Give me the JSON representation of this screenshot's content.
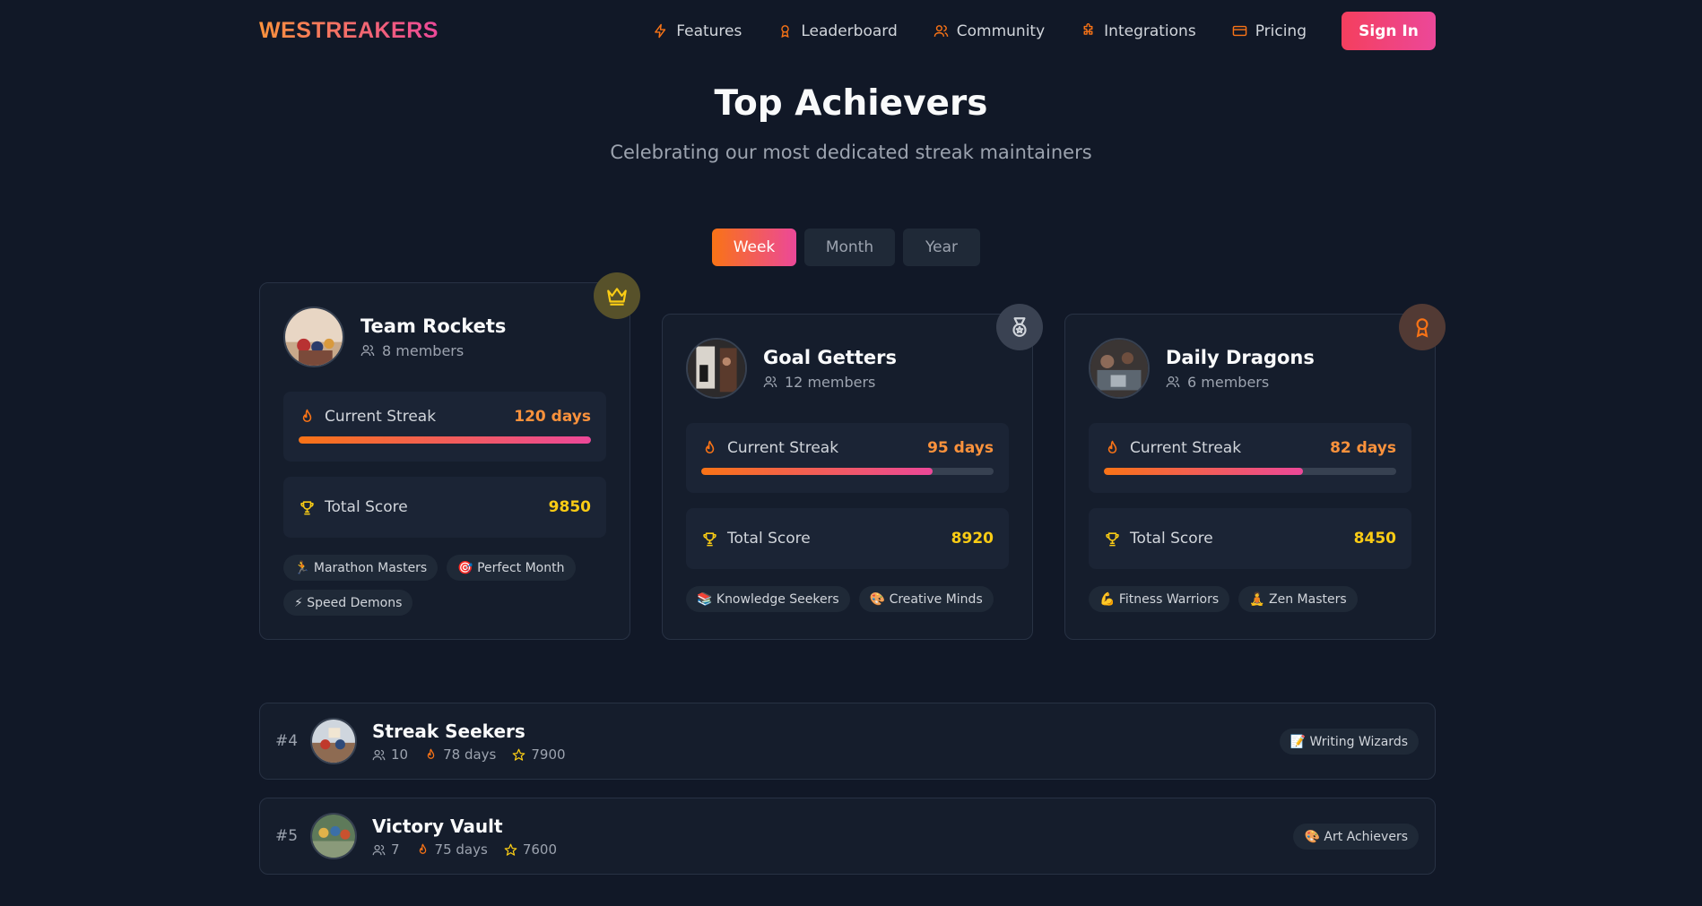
{
  "nav": {
    "logo": "WESTREAKERS",
    "links": [
      {
        "label": "Features",
        "icon": "lightning-icon"
      },
      {
        "label": "Leaderboard",
        "icon": "award-icon"
      },
      {
        "label": "Community",
        "icon": "users-icon"
      },
      {
        "label": "Integrations",
        "icon": "puzzle-icon"
      },
      {
        "label": "Pricing",
        "icon": "credit-card-icon"
      }
    ],
    "signin": "Sign In"
  },
  "header": {
    "title": "Top Achievers",
    "subtitle": "Celebrating our most dedicated streak maintainers"
  },
  "tabs": [
    {
      "label": "Week",
      "active": true
    },
    {
      "label": "Month",
      "active": false
    },
    {
      "label": "Year",
      "active": false
    }
  ],
  "top": [
    {
      "name": "Team Rockets",
      "members": "8 members",
      "badge": "crown-icon",
      "streak_label": "Current Streak",
      "streak": "120 days",
      "streak_progress": 1.0,
      "score_label": "Total Score",
      "score": "9850",
      "chips": [
        "🏃 Marathon Masters",
        "🎯 Perfect Month",
        "⚡ Speed Demons"
      ]
    },
    {
      "name": "Goal Getters",
      "members": "12 members",
      "badge": "medal-icon",
      "streak_label": "Current Streak",
      "streak": "95 days",
      "streak_progress": 0.79,
      "score_label": "Total Score",
      "score": "8920",
      "chips": [
        "📚 Knowledge Seekers",
        "🎨 Creative Minds"
      ]
    },
    {
      "name": "Daily Dragons",
      "members": "6 members",
      "badge": "award-icon",
      "streak_label": "Current Streak",
      "streak": "82 days",
      "streak_progress": 0.68,
      "score_label": "Total Score",
      "score": "8450",
      "chips": [
        "💪 Fitness Warriors",
        "🧘 Zen Masters"
      ]
    }
  ],
  "rows": [
    {
      "rank": "#4",
      "name": "Streak Seekers",
      "members": "10",
      "streak": "78 days",
      "score": "7900",
      "chip": "📝 Writing Wizards"
    },
    {
      "rank": "#5",
      "name": "Victory Vault",
      "members": "7",
      "streak": "75 days",
      "score": "7600",
      "chip": "🎨 Art Achievers"
    }
  ],
  "colors": {
    "background": "#111827",
    "accent_orange": "#f97316",
    "accent_pink": "#ec4899",
    "score_yellow": "#facc15"
  }
}
